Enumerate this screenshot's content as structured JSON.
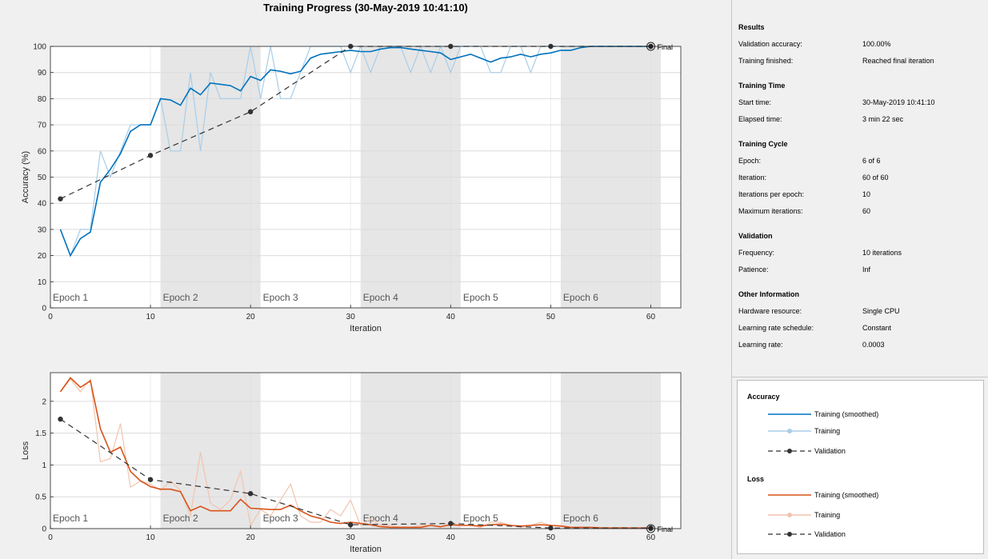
{
  "title": "Training Progress (30-May-2019 10:41:10)",
  "colors": {
    "acc_smooth": "#0072bd",
    "acc_raw": "#a8cde8",
    "loss_smooth": "#d95319",
    "loss_raw": "#f2c4ae",
    "validation": "#333333",
    "epoch_shade": "#e6e6e6"
  },
  "chart_data": [
    {
      "type": "line",
      "xlabel": "Iteration",
      "ylabel": "Accuracy (%)",
      "xlim": [
        0,
        63
      ],
      "ylim": [
        0,
        100
      ],
      "xticks": [
        0,
        10,
        20,
        30,
        40,
        50,
        60
      ],
      "yticks": [
        0,
        10,
        20,
        30,
        40,
        50,
        60,
        70,
        80,
        90,
        100
      ],
      "grid": true,
      "epochs": [
        {
          "label": "Epoch 1",
          "start": 0,
          "end": 11,
          "shaded": false
        },
        {
          "label": "Epoch 2",
          "start": 11,
          "end": 21,
          "shaded": true
        },
        {
          "label": "Epoch 3",
          "start": 21,
          "end": 31,
          "shaded": false
        },
        {
          "label": "Epoch 4",
          "start": 31,
          "end": 41,
          "shaded": true
        },
        {
          "label": "Epoch 5",
          "start": 41,
          "end": 51,
          "shaded": false
        },
        {
          "label": "Epoch 6",
          "start": 51,
          "end": 61,
          "shaded": true
        }
      ],
      "final_label": "Final",
      "final_point": [
        60,
        100
      ],
      "series": [
        {
          "name": "Training",
          "x": [
            1,
            2,
            3,
            4,
            5,
            6,
            7,
            8,
            9,
            10,
            11,
            12,
            13,
            14,
            15,
            16,
            17,
            18,
            19,
            20,
            21,
            22,
            23,
            24,
            25,
            26,
            27,
            28,
            29,
            30,
            31,
            32,
            33,
            34,
            35,
            36,
            37,
            38,
            39,
            40,
            41,
            42,
            43,
            44,
            45,
            46,
            47,
            48,
            49,
            50,
            51,
            52,
            53,
            54,
            55,
            56,
            57,
            58,
            59,
            60
          ],
          "y": [
            30,
            20,
            30,
            30,
            60,
            50,
            60,
            70,
            70,
            70,
            80,
            60,
            60,
            90,
            60,
            90,
            80,
            80,
            80,
            100,
            80,
            100,
            80,
            80,
            90,
            100,
            100,
            100,
            100,
            90,
            100,
            90,
            100,
            100,
            100,
            90,
            100,
            90,
            100,
            90,
            100,
            100,
            100,
            90,
            90,
            100,
            100,
            90,
            100,
            100,
            100,
            100,
            100,
            100,
            100,
            100,
            100,
            100,
            100,
            100
          ]
        },
        {
          "name": "Training (smoothed)",
          "x": [
            1,
            2,
            3,
            4,
            5,
            6,
            7,
            8,
            9,
            10,
            11,
            12,
            13,
            14,
            15,
            16,
            17,
            18,
            19,
            20,
            21,
            22,
            23,
            24,
            25,
            26,
            27,
            28,
            29,
            30,
            31,
            32,
            33,
            34,
            35,
            36,
            37,
            38,
            39,
            40,
            41,
            42,
            43,
            44,
            45,
            46,
            47,
            48,
            49,
            50,
            51,
            52,
            53,
            54,
            55,
            56,
            57,
            58,
            59,
            60
          ],
          "y": [
            30,
            20,
            26.5,
            29,
            48,
            53,
            59,
            67.5,
            70,
            70,
            80,
            79.5,
            77.5,
            84,
            81.5,
            86,
            85.5,
            85,
            83,
            88.5,
            87,
            91,
            90.5,
            89.5,
            90.5,
            95.5,
            97,
            97.5,
            98,
            98.5,
            98,
            98,
            99,
            99.5,
            99.5,
            99,
            98.5,
            98,
            97.5,
            95,
            96,
            97,
            95.5,
            94,
            95.5,
            96,
            97,
            96,
            97,
            97.5,
            98.5,
            98.5,
            99.5,
            100,
            100,
            100,
            100,
            100,
            100,
            100
          ]
        },
        {
          "name": "Validation",
          "x": [
            1,
            10,
            20,
            30,
            40,
            50,
            60
          ],
          "y": [
            41.7,
            58.3,
            75,
            100,
            100,
            100,
            100
          ]
        }
      ]
    },
    {
      "type": "line",
      "xlabel": "Iteration",
      "ylabel": "Loss",
      "xlim": [
        0,
        63
      ],
      "ylim": [
        0,
        2.45
      ],
      "xticks": [
        0,
        10,
        20,
        30,
        40,
        50,
        60
      ],
      "yticks": [
        0,
        0.5,
        1,
        1.5,
        2
      ],
      "grid": true,
      "epochs": [
        {
          "label": "Epoch 1",
          "start": 0,
          "end": 11,
          "shaded": false
        },
        {
          "label": "Epoch 2",
          "start": 11,
          "end": 21,
          "shaded": true
        },
        {
          "label": "Epoch 3",
          "start": 21,
          "end": 31,
          "shaded": false
        },
        {
          "label": "Epoch 4",
          "start": 31,
          "end": 41,
          "shaded": true
        },
        {
          "label": "Epoch 5",
          "start": 41,
          "end": 51,
          "shaded": false
        },
        {
          "label": "Epoch 6",
          "start": 51,
          "end": 61,
          "shaded": true
        }
      ],
      "final_label": "Final",
      "final_point": [
        60,
        0
      ],
      "series": [
        {
          "name": "Training",
          "x": [
            1,
            2,
            3,
            4,
            5,
            6,
            7,
            8,
            9,
            10,
            11,
            12,
            13,
            14,
            15,
            16,
            17,
            18,
            19,
            20,
            21,
            22,
            23,
            24,
            25,
            26,
            27,
            28,
            29,
            30,
            31,
            32,
            33,
            34,
            35,
            36,
            37,
            38,
            39,
            40,
            41,
            42,
            43,
            44,
            45,
            46,
            47,
            48,
            49,
            50,
            51,
            52,
            53,
            54,
            55,
            56,
            57,
            58,
            59,
            60
          ],
          "y": [
            2.15,
            2.35,
            2.15,
            2.35,
            1.05,
            1.1,
            1.65,
            0.65,
            0.75,
            0.7,
            0.6,
            0.75,
            0.6,
            0.2,
            1.2,
            0.4,
            0.3,
            0.45,
            0.9,
            0.05,
            0.3,
            0.2,
            0.45,
            0.7,
            0.2,
            0.1,
            0.1,
            0.3,
            0.2,
            0.45,
            0.05,
            0.15,
            0.05,
            0.05,
            0.02,
            0.02,
            0.05,
            0.05,
            0.02,
            0.1,
            0.05,
            0.05,
            0.02,
            0.1,
            0.1,
            0.05,
            0.02,
            0.05,
            0.1,
            0.05,
            0.05,
            0.02,
            0.02,
            0.02,
            0.02,
            0.01,
            0.02,
            0.01,
            0.01,
            0.01
          ]
        },
        {
          "name": "Training (smoothed)",
          "x": [
            1,
            2,
            3,
            4,
            5,
            6,
            7,
            8,
            9,
            10,
            11,
            12,
            13,
            14,
            15,
            16,
            17,
            18,
            19,
            20,
            21,
            22,
            23,
            24,
            25,
            26,
            27,
            28,
            29,
            30,
            31,
            32,
            33,
            34,
            35,
            36,
            37,
            38,
            39,
            40,
            41,
            42,
            43,
            44,
            45,
            46,
            47,
            48,
            49,
            50,
            51,
            52,
            53,
            54,
            55,
            56,
            57,
            58,
            59,
            60
          ],
          "y": [
            2.15,
            2.37,
            2.22,
            2.32,
            1.57,
            1.2,
            1.28,
            0.9,
            0.75,
            0.66,
            0.62,
            0.62,
            0.58,
            0.28,
            0.35,
            0.28,
            0.28,
            0.28,
            0.46,
            0.32,
            0.31,
            0.3,
            0.3,
            0.37,
            0.28,
            0.2,
            0.16,
            0.1,
            0.08,
            0.1,
            0.08,
            0.06,
            0.03,
            0.02,
            0.02,
            0.02,
            0.02,
            0.05,
            0.03,
            0.06,
            0.05,
            0.05,
            0.04,
            0.06,
            0.07,
            0.05,
            0.04,
            0.05,
            0.06,
            0.05,
            0.04,
            0.02,
            0.02,
            0.02,
            0.01,
            0.01,
            0.01,
            0.01,
            0.01,
            0.01
          ]
        },
        {
          "name": "Validation",
          "x": [
            1,
            10,
            20,
            30,
            40,
            50,
            60
          ],
          "y": [
            1.72,
            0.77,
            0.55,
            0.06,
            0.08,
            0.01,
            0.01
          ]
        }
      ]
    }
  ],
  "info": {
    "results": {
      "title": "Results",
      "validation_accuracy_label": "Validation accuracy:",
      "validation_accuracy": "100.00%",
      "training_finished_label": "Training finished:",
      "training_finished": "Reached final iteration"
    },
    "time": {
      "title": "Training Time",
      "start_label": "Start time:",
      "start": "30-May-2019 10:41:10",
      "elapsed_label": "Elapsed time:",
      "elapsed": "3 min 22 sec"
    },
    "cycle": {
      "title": "Training Cycle",
      "epoch_label": "Epoch:",
      "epoch": "6 of 6",
      "iteration_label": "Iteration:",
      "iteration": "60 of 60",
      "ipe_label": "Iterations per epoch:",
      "ipe": "10",
      "max_label": "Maximum iterations:",
      "max": "60"
    },
    "validation": {
      "title": "Validation",
      "frequency_label": "Frequency:",
      "frequency": "10 iterations",
      "patience_label": "Patience:",
      "patience": "Inf"
    },
    "other": {
      "title": "Other Information",
      "hardware_label": "Hardware resource:",
      "hardware": "Single CPU",
      "schedule_label": "Learning rate schedule:",
      "schedule": "Constant",
      "rate_label": "Learning rate:",
      "rate": "0.0003"
    }
  },
  "legend": {
    "accuracy_title": "Accuracy",
    "loss_title": "Loss",
    "acc_smoothed": "Training (smoothed)",
    "acc_training": "Training",
    "acc_validation": "Validation",
    "loss_smoothed": "Training (smoothed)",
    "loss_training": "Training",
    "loss_validation": "Validation"
  }
}
